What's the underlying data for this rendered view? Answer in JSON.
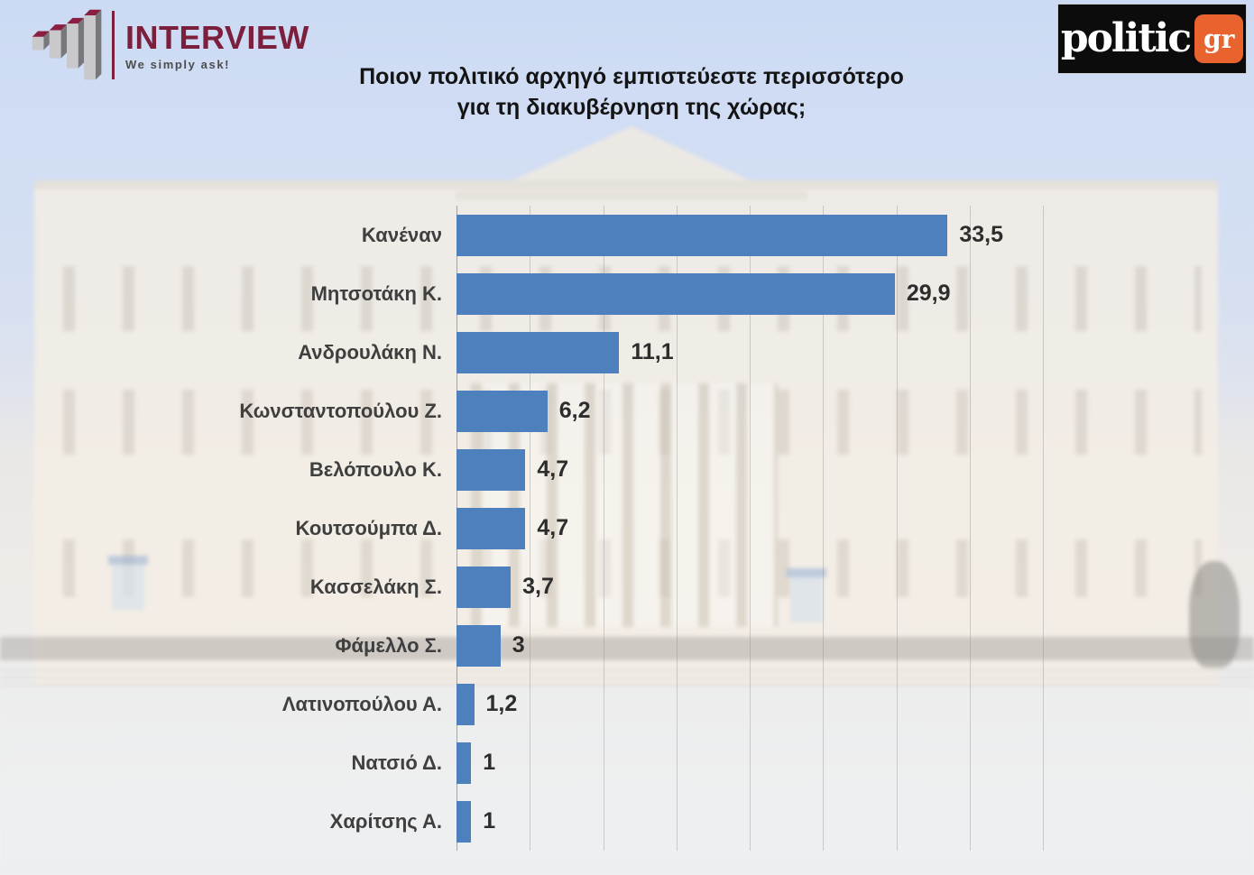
{
  "header": {
    "interview_logo": {
      "name": "INTERVIEW",
      "tagline": "We simply ask!"
    },
    "politic_logo": {
      "name": "politic",
      "suffix": "gr"
    }
  },
  "title": {
    "line1": "Ποιον πολιτικό αρχηγό εμπιστεύεστε περισσότερο",
    "line2": "για τη διακυβέρνηση της χώρας;"
  },
  "chart_data": {
    "type": "bar",
    "orientation": "horizontal",
    "title": "Ποιον πολιτικό αρχηγό εμπιστεύεστε περισσότερο για τη διακυβέρνηση της χώρας;",
    "categories": [
      "Κανέναν",
      "Μητσοτάκη Κ.",
      "Ανδρουλάκη Ν.",
      "Κωνσταντοπούλου Ζ.",
      "Βελόπουλο Κ.",
      "Κουτσούμπα Δ.",
      "Κασσελάκη Σ.",
      "Φάμελλο Σ.",
      "Λατινοπούλου Α.",
      "Νατσιό Δ.",
      "Χαρίτσης Α."
    ],
    "values": [
      33.5,
      29.9,
      11.1,
      6.2,
      4.7,
      4.7,
      3.7,
      3,
      1.2,
      1,
      1
    ],
    "value_labels": [
      "33,5",
      "29,9",
      "11,1",
      "6,2",
      "4,7",
      "4,7",
      "3,7",
      "3",
      "1,2",
      "1",
      "1"
    ],
    "xlabel": "",
    "ylabel": "",
    "xlim": [
      0,
      40
    ],
    "gridline_step": 5,
    "grid": true,
    "legend": false,
    "bar_color": "#4d80bd",
    "label_color": "#3f3f3f",
    "value_color": "#2d2d2d"
  },
  "colors": {
    "sky": "#cddbf3",
    "building": "#f4eee5",
    "bar_blue": "#4d80bd",
    "interview_maroon": "#7c1f3d",
    "politic_black": "#0c0c0c",
    "politic_orange": "#e8632e"
  }
}
